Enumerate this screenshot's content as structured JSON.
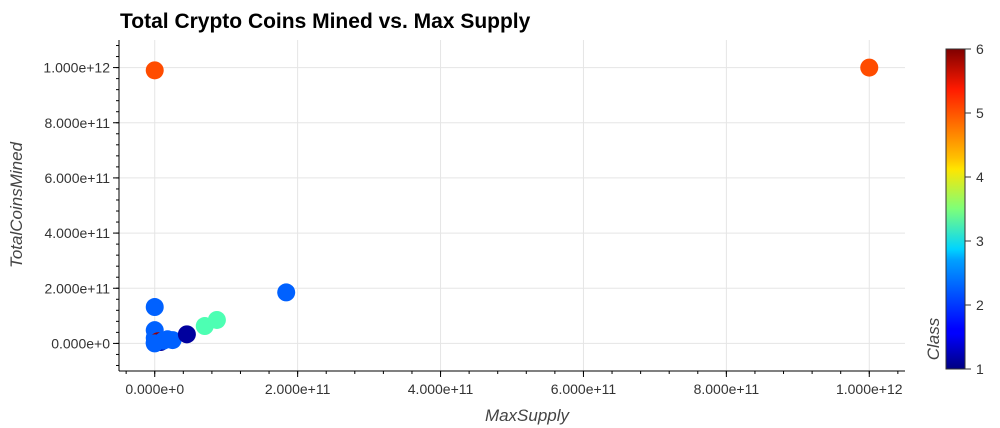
{
  "chart_data": {
    "type": "scatter",
    "title": "Total Crypto Coins Mined vs. Max Supply",
    "xlabel": "MaxSupply",
    "ylabel": "TotalCoinsMined",
    "xlim": [
      -50000000000,
      1050000000000
    ],
    "ylim": [
      -100000000000,
      1100000000000
    ],
    "x_ticks": [
      0,
      200000000000,
      400000000000,
      600000000000,
      800000000000,
      1000000000000
    ],
    "x_tick_labels": [
      "0.000e+0",
      "2.000e+11",
      "4.000e+11",
      "6.000e+11",
      "8.000e+11",
      "1.000e+12"
    ],
    "y_ticks": [
      0,
      200000000000,
      400000000000,
      600000000000,
      800000000000,
      1000000000000
    ],
    "y_tick_labels": [
      "0.000e+0",
      "2.000e+11",
      "4.000e+11",
      "6.000e+11",
      "8.000e+11",
      "1.000e+12"
    ],
    "grid": true,
    "color_by": "Class",
    "colorbar": {
      "label": "Class",
      "range": [
        1,
        6
      ],
      "ticks": [
        1,
        2,
        3,
        4,
        5,
        6
      ],
      "colormap": "jet"
    },
    "points": [
      {
        "x": 0,
        "y": 990000000000,
        "class": 5
      },
      {
        "x": 1000000000000,
        "y": 1000000000000,
        "class": 5
      },
      {
        "x": 184000000000,
        "y": 185000000000,
        "class": 2
      },
      {
        "x": 0,
        "y": 132000000000,
        "class": 2
      },
      {
        "x": 0,
        "y": 48000000000,
        "class": 2
      },
      {
        "x": 0,
        "y": 20000000000,
        "class": 2
      },
      {
        "x": 0,
        "y": 3000000000,
        "class": 2
      },
      {
        "x": 5000000000,
        "y": 8000000000,
        "class": 6
      },
      {
        "x": 8000000000,
        "y": 5000000000,
        "class": 1
      },
      {
        "x": 12000000000,
        "y": 10000000000,
        "class": 2
      },
      {
        "x": 18000000000,
        "y": 15000000000,
        "class": 2
      },
      {
        "x": 25000000000,
        "y": 12000000000,
        "class": 2
      },
      {
        "x": 45000000000,
        "y": 33000000000,
        "class": 1
      },
      {
        "x": 70000000000,
        "y": 63000000000,
        "class": 3
      },
      {
        "x": 87000000000,
        "y": 85000000000,
        "class": 3
      },
      {
        "x": 0,
        "y": 0,
        "class": 2
      }
    ]
  }
}
